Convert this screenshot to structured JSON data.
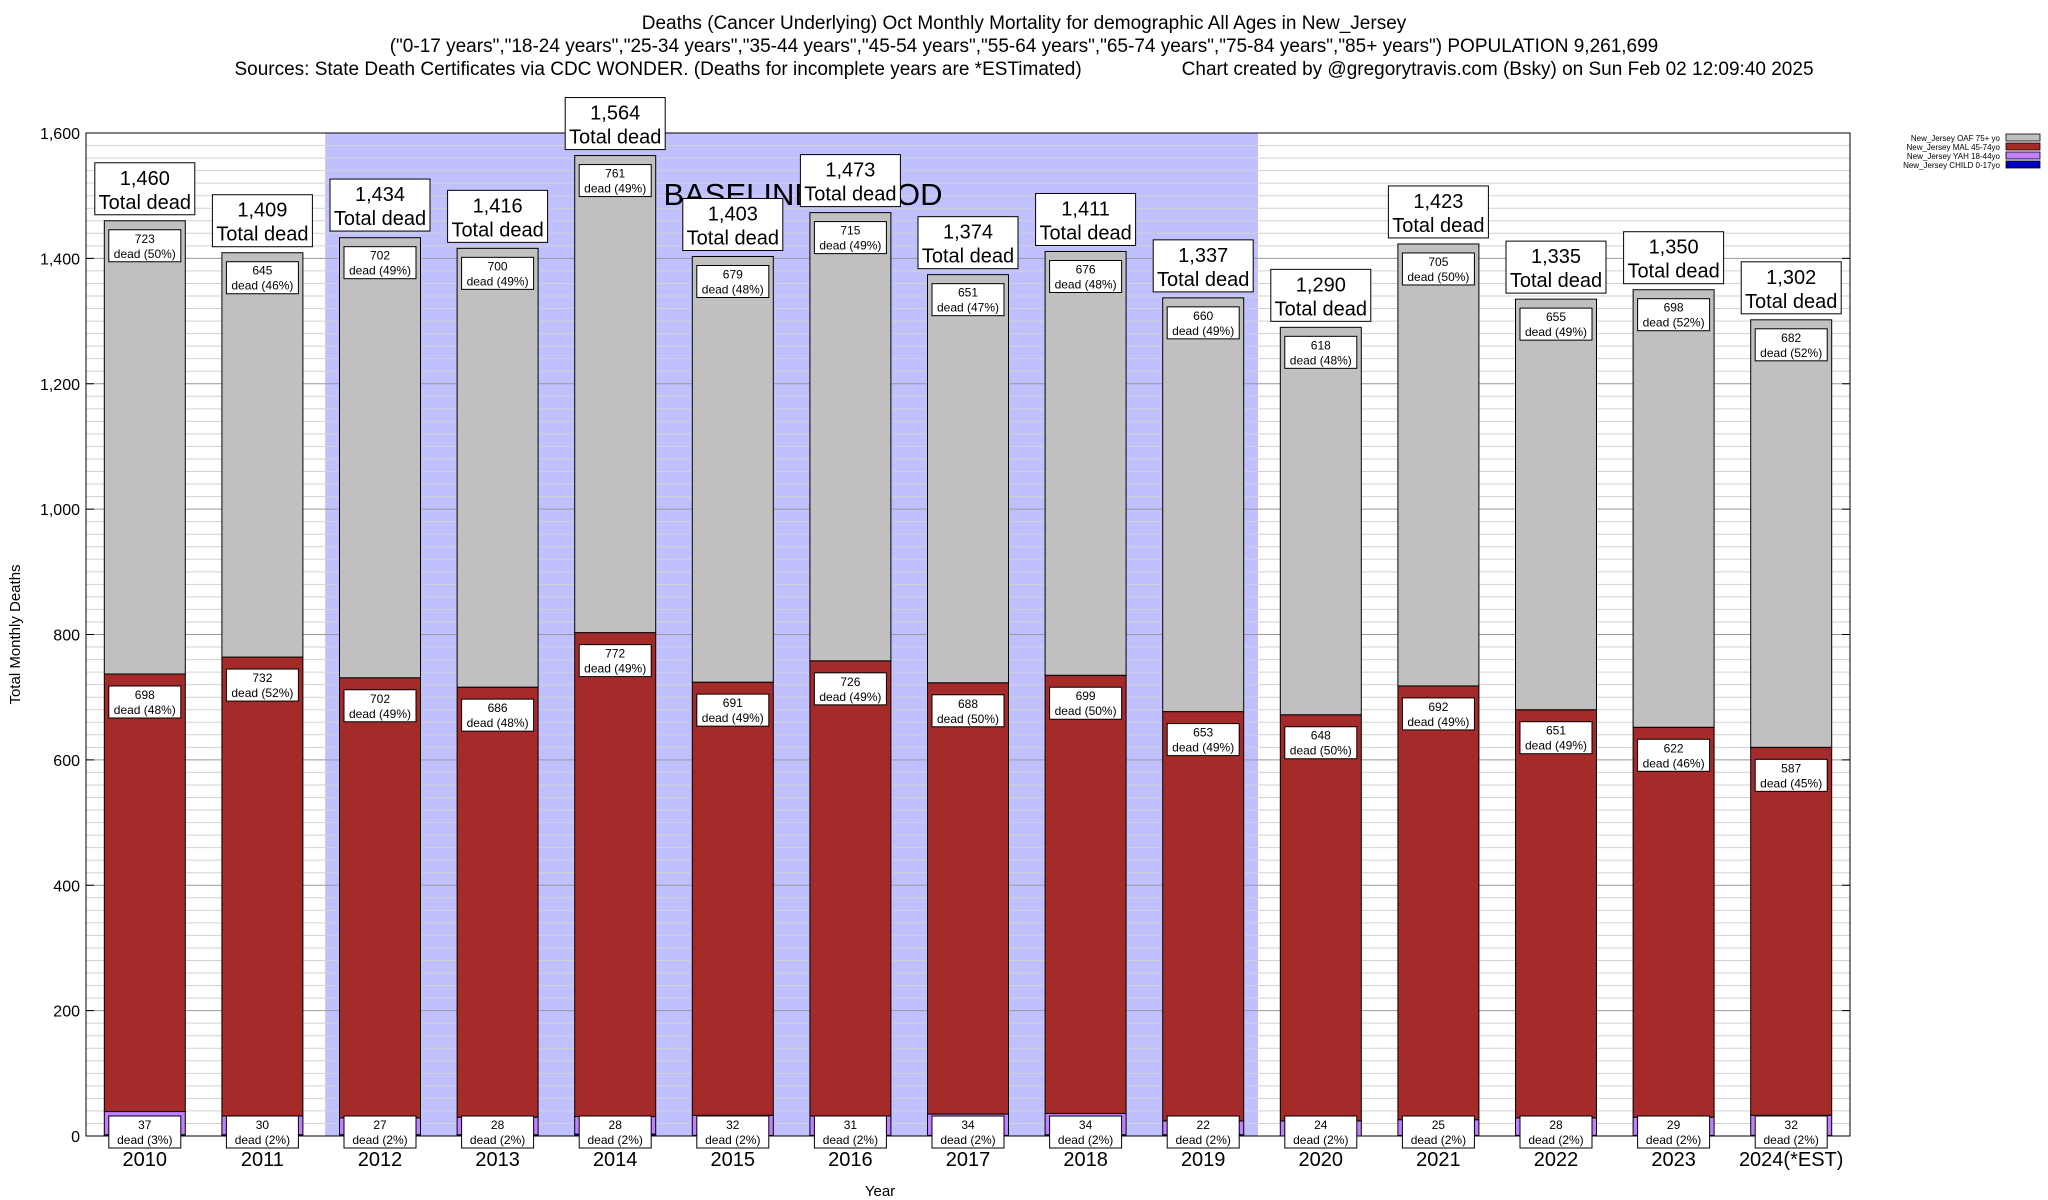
{
  "titles": {
    "line1": "Deaths (Cancer Underlying) Oct Monthly Mortality for demographic All Ages in New_Jersey",
    "line2": "(\"0-17 years\",\"18-24 years\",\"25-34 years\",\"35-44 years\",\"45-54 years\",\"55-64 years\",\"65-74 years\",\"75-84 years\",\"85+ years\") POPULATION 9,261,699",
    "sources": "Sources: State Death Certificates via CDC WONDER. (Deaths for incomplete years are *ESTimated)",
    "credit": "Chart created by @gregorytravis.com (Bsky) on Sun Feb 02 12:09:40 2025"
  },
  "chart_data": {
    "type": "bar",
    "stacked": true,
    "xlabel": "Year",
    "ylabel": "Total Monthly Deaths",
    "ylim": [
      0,
      1600
    ],
    "yticks": [
      0,
      200,
      400,
      600,
      800,
      1000,
      1200,
      1400,
      1600
    ],
    "ytick_labels": [
      "0",
      "200",
      "400",
      "600",
      "800",
      "1,000",
      "1,200",
      "1,400",
      "1,600"
    ],
    "grid": true,
    "legend_position": "top-right",
    "categories": [
      "2010",
      "2011",
      "2012",
      "2013",
      "2014",
      "2015",
      "2016",
      "2017",
      "2018",
      "2019",
      "2020",
      "2021",
      "2022",
      "2023",
      "2024(*EST)"
    ],
    "series": [
      {
        "name": "New_Jersey CHILD 0-17yo",
        "color": "#0000c0",
        "values": [
          2,
          2,
          2,
          2,
          3,
          1,
          1,
          1,
          2,
          2,
          0,
          1,
          1,
          1,
          1
        ]
      },
      {
        "name": "New_Jersey YAH 18-44yo",
        "color": "#c080ff",
        "values": [
          37,
          30,
          27,
          28,
          28,
          32,
          31,
          34,
          34,
          22,
          24,
          25,
          28,
          29,
          32
        ]
      },
      {
        "name": "New_Jersey MAL 45-74yo",
        "color": "#a52a2a",
        "values": [
          698,
          732,
          702,
          686,
          772,
          691,
          726,
          688,
          699,
          653,
          648,
          692,
          651,
          622,
          587
        ]
      },
      {
        "name": "New_Jersey OAF 75+ yo",
        "color": "#c0c0c0",
        "values": [
          723,
          645,
          702,
          700,
          761,
          679,
          715,
          651,
          676,
          660,
          618,
          705,
          655,
          698,
          682
        ]
      }
    ],
    "totals": [
      1460,
      1409,
      1434,
      1416,
      1564,
      1403,
      1473,
      1374,
      1411,
      1337,
      1290,
      1423,
      1335,
      1350,
      1302
    ],
    "total_labels": [
      "1,460",
      "1,409",
      "1,434",
      "1,416",
      "1,564",
      "1,403",
      "1,473",
      "1,374",
      "1,411",
      "1,337",
      "1,290",
      "1,423",
      "1,335",
      "1,350",
      "1,302"
    ],
    "total_suffix": "Total dead",
    "segment_labels": {
      "YAH": [
        "dead (3%)",
        "dead (2%)",
        "dead (2%)",
        "dead (2%)",
        "dead (2%)",
        "dead (2%)",
        "dead (2%)",
        "dead (2%)",
        "dead (2%)",
        "dead (2%)",
        "dead (2%)",
        "dead (2%)",
        "dead (2%)",
        "dead (2%)",
        "dead (2%)"
      ],
      "MAL": [
        "dead (48%)",
        "dead (52%)",
        "dead (49%)",
        "dead (48%)",
        "dead (49%)",
        "dead (49%)",
        "dead (49%)",
        "dead (50%)",
        "dead (50%)",
        "dead (49%)",
        "dead (50%)",
        "dead (49%)",
        "dead (49%)",
        "dead (46%)",
        "dead (45%)"
      ],
      "OAF": [
        "dead (50%)",
        "dead (46%)",
        "dead (49%)",
        "dead (49%)",
        "dead (49%)",
        "dead (48%)",
        "dead (49%)",
        "dead (47%)",
        "dead (48%)",
        "dead (49%)",
        "dead (48%)",
        "dead (50%)",
        "dead (49%)",
        "dead (52%)",
        "dead (52%)"
      ]
    },
    "baseline": {
      "label": "BASELINE PERIOD",
      "start": "2012",
      "end": "2019",
      "color": "#c0c0ff"
    }
  }
}
